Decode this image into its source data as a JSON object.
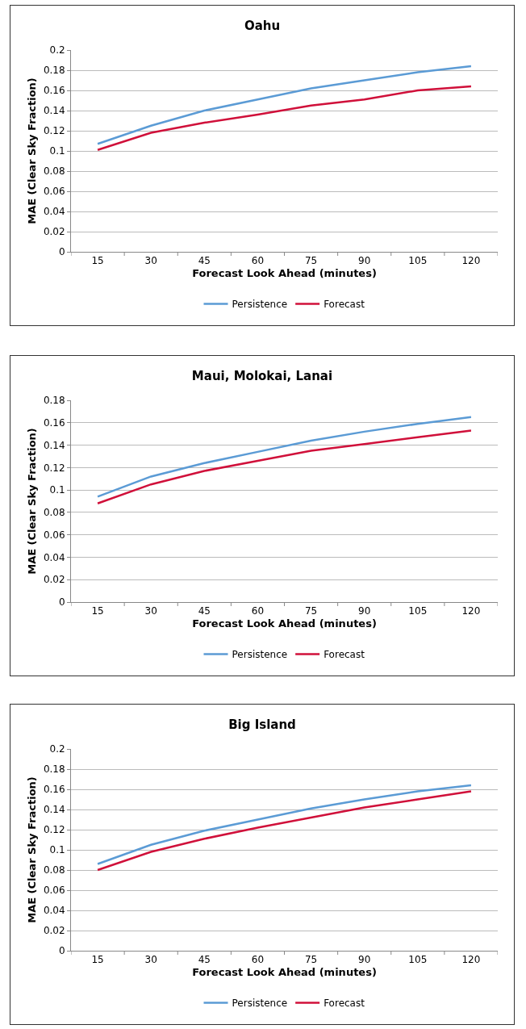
{
  "chart_data": [
    {
      "type": "line",
      "title": "Oahu",
      "xlabel": "Forecast Look Ahead (minutes)",
      "ylabel": "MAE (Clear Sky Fraction)",
      "categories": [
        "15",
        "30",
        "45",
        "60",
        "75",
        "90",
        "105",
        "120"
      ],
      "series": [
        {
          "name": "Persistence",
          "color": "#5b9bd5",
          "values": [
            0.107,
            0.125,
            0.14,
            0.151,
            0.162,
            0.17,
            0.178,
            0.184
          ]
        },
        {
          "name": "Forecast",
          "color": "#d0103a",
          "values": [
            0.101,
            0.118,
            0.128,
            0.136,
            0.145,
            0.151,
            0.16,
            0.164
          ]
        }
      ],
      "ylim": [
        0,
        0.2
      ],
      "yticks": [
        0,
        0.02,
        0.04,
        0.06,
        0.08,
        0.1,
        0.12,
        0.14,
        0.16,
        0.18,
        0.2
      ],
      "grid": "y",
      "legend": "bottom",
      "marker": "none",
      "line_style": "solid"
    },
    {
      "type": "line",
      "title": "Maui, Molokai, Lanai",
      "xlabel": "Forecast Look Ahead (minutes)",
      "ylabel": "MAE (Clear Sky Fraction)",
      "categories": [
        "15",
        "30",
        "45",
        "60",
        "75",
        "90",
        "105",
        "120"
      ],
      "series": [
        {
          "name": "Persistence",
          "color": "#5b9bd5",
          "values": [
            0.094,
            0.112,
            0.124,
            0.134,
            0.144,
            0.152,
            0.159,
            0.165
          ]
        },
        {
          "name": "Forecast",
          "color": "#d0103a",
          "values": [
            0.088,
            0.105,
            0.117,
            0.126,
            0.135,
            0.141,
            0.147,
            0.153
          ]
        }
      ],
      "ylim": [
        0,
        0.18
      ],
      "yticks": [
        0,
        0.02,
        0.04,
        0.06,
        0.08,
        0.1,
        0.12,
        0.14,
        0.16,
        0.18
      ],
      "grid": "y",
      "legend": "bottom",
      "marker": "none",
      "line_style": "solid"
    },
    {
      "type": "line",
      "title": "Big Island",
      "xlabel": "Forecast Look Ahead (minutes)",
      "ylabel": "MAE (Clear Sky Fraction)",
      "categories": [
        "15",
        "30",
        "45",
        "60",
        "75",
        "90",
        "105",
        "120"
      ],
      "series": [
        {
          "name": "Persistence",
          "color": "#5b9bd5",
          "values": [
            0.086,
            0.105,
            0.119,
            0.13,
            0.141,
            0.15,
            0.158,
            0.164
          ]
        },
        {
          "name": "Forecast",
          "color": "#d0103a",
          "values": [
            0.08,
            0.098,
            0.111,
            0.122,
            0.132,
            0.142,
            0.15,
            0.158
          ]
        }
      ],
      "ylim": [
        0,
        0.2
      ],
      "yticks": [
        0,
        0.02,
        0.04,
        0.06,
        0.08,
        0.1,
        0.12,
        0.14,
        0.16,
        0.18,
        0.2
      ],
      "grid": "y",
      "legend": "bottom",
      "marker": "none",
      "line_style": "solid"
    }
  ]
}
